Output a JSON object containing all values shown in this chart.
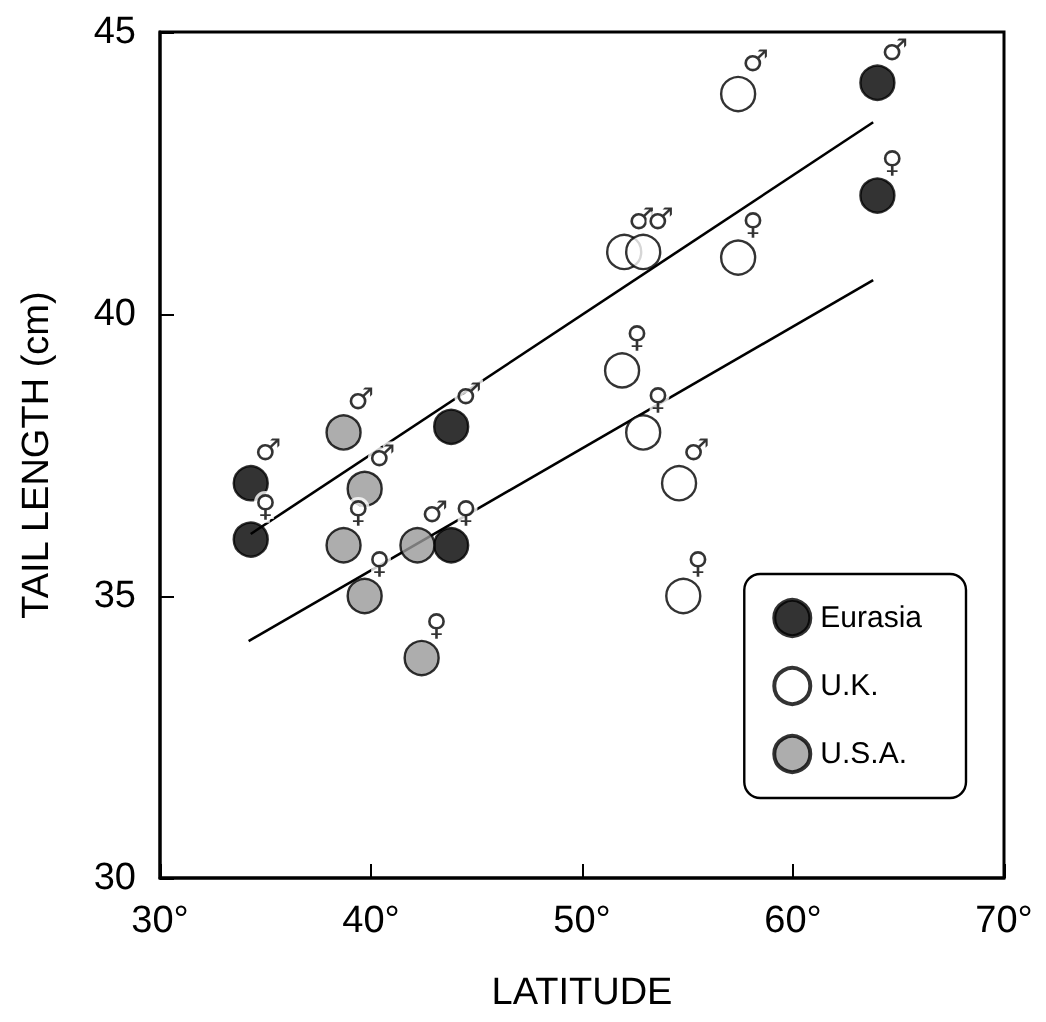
{
  "chart_data": {
    "type": "scatter",
    "xlabel": "LATITUDE",
    "ylabel": "TAIL LENGTH (cm)",
    "xlim": [
      30,
      70
    ],
    "xticks": [
      {
        "value": 30,
        "label": "30°"
      },
      {
        "value": 40,
        "label": "40°"
      },
      {
        "value": 50,
        "label": "50°"
      },
      {
        "value": 60,
        "label": "60°"
      },
      {
        "value": 70,
        "label": "70°"
      }
    ],
    "ylim": [
      30,
      45
    ],
    "yticks": [
      30,
      35,
      40,
      45
    ],
    "grid": false,
    "legend": "bottom right",
    "marker": "circle",
    "series": [
      {
        "name": "Eurasia",
        "color": "#000000",
        "x": [
          34.3,
          34.3,
          43.8,
          43.8,
          64.0,
          64.0
        ],
        "values": [
          37.0,
          36.0,
          38.0,
          35.9,
          44.1,
          42.1
        ],
        "value_labels": [
          "♂",
          "♀",
          "♂",
          "♀",
          "♂",
          "♀"
        ]
      },
      {
        "name": "U.K.",
        "color": "#ffffff",
        "x": [
          57.4,
          52.0,
          52.9,
          57.4,
          51.9,
          52.9,
          54.6,
          54.8
        ],
        "values": [
          43.9,
          41.1,
          41.1,
          41.0,
          39.0,
          37.9,
          37.0,
          35.0
        ],
        "value_labels": [
          "♂",
          "♂",
          "♂",
          "♀",
          "♀",
          "♀",
          "♂",
          "♀"
        ]
      },
      {
        "name": "U.S.A.",
        "color": "#999999",
        "x": [
          38.7,
          39.7,
          38.7,
          39.7,
          42.2,
          42.4
        ],
        "values": [
          37.9,
          36.9,
          35.9,
          35.0,
          35.9,
          33.9
        ],
        "value_labels": [
          "♂",
          "♂",
          "♀",
          "♀",
          "♂",
          "♀"
        ]
      },
      {
        "type": "line",
        "marker": "none",
        "color": "#000000",
        "x": [
          34.3,
          63.8
        ],
        "values": [
          36.1,
          43.4
        ]
      },
      {
        "type": "line",
        "marker": "none",
        "color": "#000000",
        "x": [
          34.2,
          63.8
        ],
        "values": [
          34.2,
          40.6
        ]
      }
    ]
  }
}
